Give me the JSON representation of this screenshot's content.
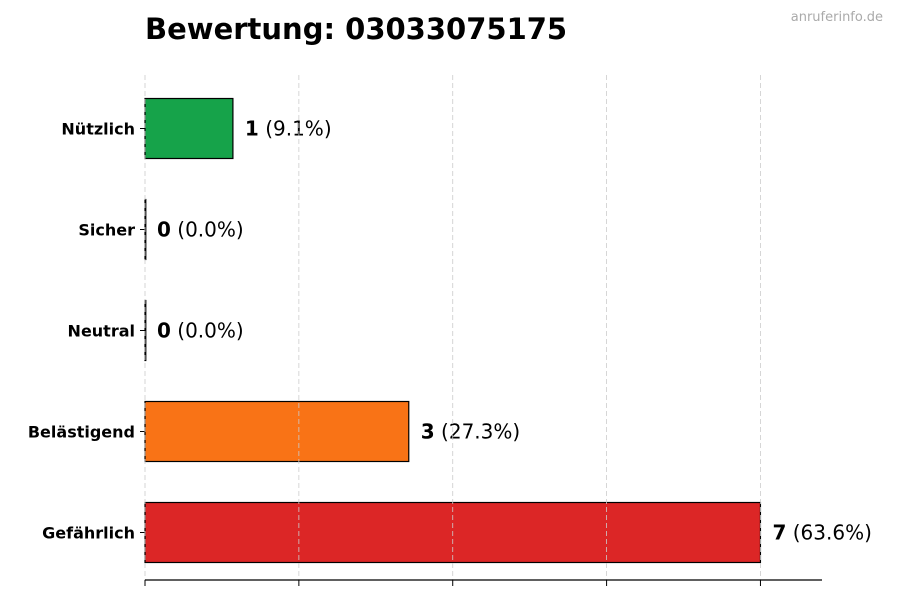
{
  "chart_data": {
    "type": "bar",
    "orientation": "horizontal",
    "title": "Bewertung: 03033075175",
    "categories": [
      "Nützlich",
      "Sicher",
      "Neutral",
      "Belästigend",
      "Gefährlich"
    ],
    "values": [
      1,
      0,
      0,
      3,
      7
    ],
    "percent_labels": [
      "(9.1%)",
      "(0.0%)",
      "(0.0%)",
      "(27.3%)",
      "(63.6%)"
    ],
    "colors": [
      "#16a34a",
      "#16a34a",
      "#9ca3af",
      "#f97316",
      "#dc2626"
    ],
    "xlim": [
      0,
      7.7
    ],
    "xticks": [
      0,
      1.75,
      3.5,
      5.25,
      7
    ],
    "xtick_labels_shown": false,
    "grid": "x-dashed",
    "xlabel": "",
    "ylabel": ""
  },
  "watermark": "anruferinfo.de"
}
